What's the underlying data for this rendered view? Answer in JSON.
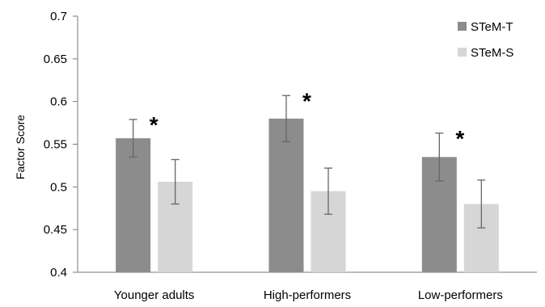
{
  "chart_data": {
    "type": "bar",
    "title": "",
    "xlabel": "",
    "ylabel": "Factor Score",
    "ylim": [
      0.4,
      0.7
    ],
    "yticks": [
      0.4,
      0.45,
      0.5,
      0.55,
      0.6,
      0.65,
      0.7
    ],
    "ytick_labels": [
      "0.4",
      "0.45",
      "0.5",
      "0.55",
      "0.6",
      "0.65",
      "0.7"
    ],
    "categories": [
      "Younger adults",
      "High-performers",
      "Low-performers"
    ],
    "series": [
      {
        "name": "STeM-T",
        "color": "#8c8c8c",
        "values": [
          0.557,
          0.58,
          0.535
        ],
        "error": [
          0.022,
          0.027,
          0.028
        ]
      },
      {
        "name": "STeM-S",
        "color": "#d6d6d6",
        "values": [
          0.506,
          0.495,
          0.48
        ],
        "error": [
          0.026,
          0.027,
          0.028
        ]
      }
    ],
    "significance_marker": "*",
    "significance": [
      true,
      true,
      true
    ],
    "legend_position": "top-right",
    "grid": false
  }
}
